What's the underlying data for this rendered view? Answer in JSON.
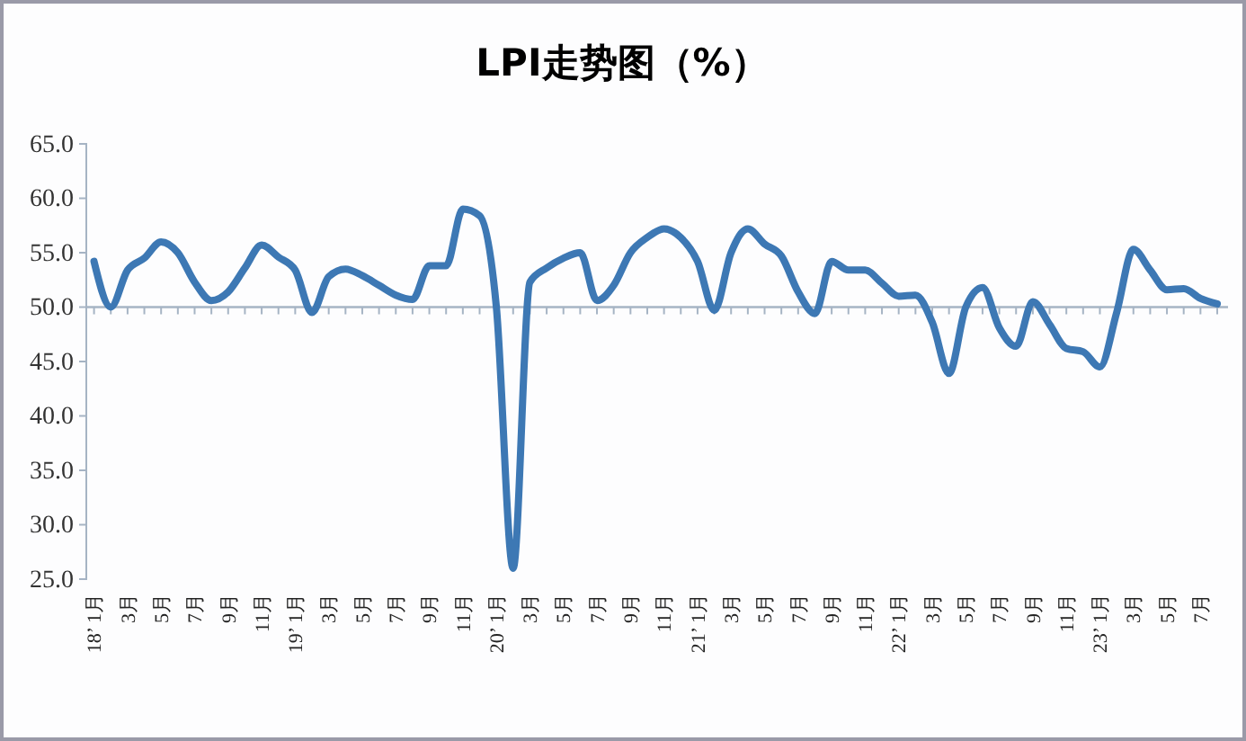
{
  "chart_data": {
    "type": "line",
    "title": "LPI走势图（%）",
    "categories": [
      "18’ 1月",
      null,
      "3月",
      null,
      "5月",
      null,
      "7月",
      null,
      "9月",
      null,
      "11月",
      null,
      "19’ 1月",
      null,
      "3月",
      null,
      "5月",
      null,
      "7月",
      null,
      "9月",
      null,
      "11月",
      null,
      "20’ 1月",
      null,
      "3月",
      null,
      "5月",
      null,
      "7月",
      null,
      "9月",
      null,
      "11月",
      null,
      "21’ 1月",
      null,
      "3月",
      null,
      "5月",
      null,
      "7月",
      null,
      "9月",
      null,
      "11月",
      null,
      "22’ 1月",
      null,
      "3月",
      null,
      "5月",
      null,
      "7月",
      null,
      "9月",
      null,
      "11月",
      null,
      "23’ 1月",
      null,
      "3月",
      null,
      "5月",
      null,
      "7月",
      null
    ],
    "series": [
      {
        "color": "#3d78b4",
        "values": [
          54.2,
          50.0,
          53.4,
          54.5,
          56.0,
          55.0,
          52.3,
          50.6,
          51.4,
          53.6,
          55.7,
          54.6,
          53.4,
          49.5,
          52.8,
          53.5,
          52.9,
          52.0,
          51.1,
          50.7,
          53.8,
          53.8,
          59.0,
          58.4,
          50.0,
          26.0,
          52.3,
          53.6,
          54.5,
          55.0,
          50.6,
          52.0,
          55.0,
          56.4,
          57.2,
          56.4,
          54.2,
          49.7,
          55.0,
          57.2,
          55.8,
          54.7,
          51.4,
          49.4,
          54.2,
          53.4,
          53.4,
          52.2,
          51.0,
          51.1,
          48.6,
          43.9,
          50.0,
          51.8,
          48.1,
          46.4,
          50.5,
          48.4,
          46.2,
          45.9,
          44.5,
          49.5,
          55.3,
          53.4,
          51.6,
          51.7,
          50.8,
          50.3
        ]
      }
    ],
    "ylim": [
      25,
      65
    ],
    "yticks": [
      {
        "value": 25,
        "label": "25.0"
      },
      {
        "value": 30,
        "label": "30.0"
      },
      {
        "value": 35,
        "label": "35.0"
      },
      {
        "value": 40,
        "label": "40.0"
      },
      {
        "value": 45,
        "label": "45.0"
      },
      {
        "value": 50,
        "label": "50.0"
      },
      {
        "value": 55,
        "label": "55.0"
      },
      {
        "value": 60,
        "label": "60.0"
      },
      {
        "value": 65,
        "label": "65.0"
      }
    ],
    "ref_lines": [
      {
        "axis": "y",
        "value": 50,
        "color": "#a6b4c4"
      }
    ],
    "grid": false,
    "marker": "none",
    "line_style": "solid"
  }
}
